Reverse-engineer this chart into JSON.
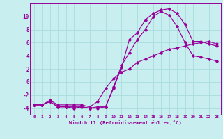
{
  "xlabel": "Windchill (Refroidissement éolien,°C)",
  "background_color": "#c8eef0",
  "line_color": "#990099",
  "grid_color": "#aadddd",
  "xlim": [
    -0.5,
    23.5
  ],
  "ylim": [
    -5.0,
    12.0
  ],
  "xticks": [
    0,
    1,
    2,
    3,
    4,
    5,
    6,
    7,
    8,
    9,
    10,
    11,
    12,
    13,
    14,
    15,
    16,
    17,
    18,
    19,
    20,
    21,
    22,
    23
  ],
  "yticks": [
    -4,
    -2,
    0,
    2,
    4,
    6,
    8,
    10
  ],
  "line1_x": [
    0,
    1,
    2,
    3,
    4,
    5,
    6,
    7,
    8,
    9,
    10,
    11,
    12,
    13,
    14,
    15,
    16,
    17,
    18,
    19,
    20,
    21,
    22,
    23
  ],
  "line1_y": [
    -3.5,
    -3.5,
    -3.0,
    -3.8,
    -3.8,
    -4.0,
    -3.8,
    -4.0,
    -4.0,
    -3.8,
    -1.0,
    2.2,
    6.5,
    7.5,
    9.5,
    10.5,
    11.0,
    11.2,
    10.5,
    8.8,
    6.2,
    6.2,
    5.8,
    5.5
  ],
  "line2_x": [
    0,
    1,
    2,
    3,
    4,
    5,
    6,
    7,
    8,
    9,
    10,
    11,
    12,
    13,
    14,
    15,
    16,
    17,
    18,
    19,
    20,
    21,
    22,
    23
  ],
  "line2_y": [
    -3.5,
    -3.5,
    -3.0,
    -3.8,
    -3.8,
    -3.8,
    -3.8,
    -4.0,
    -3.8,
    -3.8,
    -0.8,
    2.5,
    4.5,
    6.5,
    8.0,
    10.0,
    10.8,
    10.2,
    8.5,
    6.0,
    4.0,
    3.8,
    3.5,
    3.2
  ],
  "line3_x": [
    0,
    1,
    2,
    3,
    4,
    5,
    6,
    7,
    8,
    9,
    10,
    11,
    12,
    13,
    14,
    15,
    16,
    17,
    18,
    19,
    20,
    21,
    22,
    23
  ],
  "line3_y": [
    -3.5,
    -3.5,
    -2.8,
    -3.5,
    -3.5,
    -3.5,
    -3.5,
    -3.8,
    -3.0,
    -1.0,
    0.5,
    1.5,
    2.0,
    3.0,
    3.5,
    4.0,
    4.5,
    5.0,
    5.2,
    5.5,
    5.8,
    6.0,
    6.2,
    5.8
  ]
}
